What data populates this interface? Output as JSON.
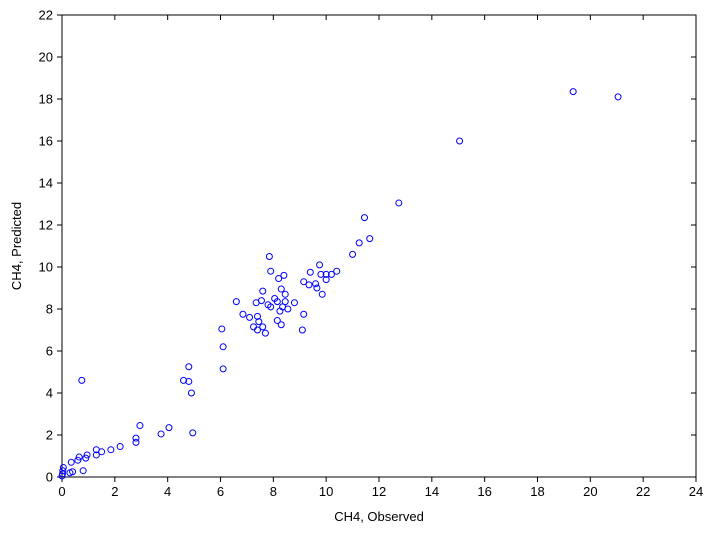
{
  "chart_data": {
    "type": "scatter",
    "xlabel": "CH4, Observed",
    "ylabel": "CH4, Predicted",
    "xlim": [
      0,
      24
    ],
    "ylim": [
      0,
      22
    ],
    "xticks": [
      "0",
      "2",
      "4",
      "6",
      "8",
      "10",
      "12",
      "14",
      "16",
      "18",
      "20",
      "22",
      "24"
    ],
    "yticks": [
      "0",
      "2",
      "4",
      "6",
      "8",
      "10",
      "12",
      "14",
      "16",
      "18",
      "20",
      "22"
    ],
    "grid": false,
    "marker_color": "#0000ff",
    "points": [
      [
        0.0,
        0.05
      ],
      [
        0.02,
        0.15
      ],
      [
        0.03,
        0.3
      ],
      [
        0.05,
        0.45
      ],
      [
        0.3,
        0.2
      ],
      [
        0.4,
        0.25
      ],
      [
        0.35,
        0.7
      ],
      [
        0.6,
        0.8
      ],
      [
        0.65,
        0.95
      ],
      [
        0.8,
        0.3
      ],
      [
        0.9,
        0.9
      ],
      [
        0.95,
        1.05
      ],
      [
        1.3,
        1.05
      ],
      [
        1.3,
        1.3
      ],
      [
        1.5,
        1.2
      ],
      [
        1.85,
        1.3
      ],
      [
        2.2,
        1.45
      ],
      [
        2.8,
        1.65
      ],
      [
        2.8,
        1.85
      ],
      [
        2.95,
        2.45
      ],
      [
        3.75,
        2.05
      ],
      [
        4.05,
        2.35
      ],
      [
        4.95,
        2.1
      ],
      [
        0.75,
        4.6
      ],
      [
        4.6,
        4.6
      ],
      [
        4.8,
        4.55
      ],
      [
        4.8,
        5.25
      ],
      [
        4.9,
        4.0
      ],
      [
        6.1,
        5.15
      ],
      [
        6.1,
        6.2
      ],
      [
        6.05,
        7.05
      ],
      [
        6.6,
        8.35
      ],
      [
        6.85,
        7.75
      ],
      [
        7.1,
        7.6
      ],
      [
        7.25,
        7.15
      ],
      [
        7.35,
        8.3
      ],
      [
        7.4,
        7.0
      ],
      [
        7.4,
        7.65
      ],
      [
        7.45,
        7.4
      ],
      [
        7.55,
        8.4
      ],
      [
        7.6,
        8.85
      ],
      [
        7.6,
        7.15
      ],
      [
        7.7,
        6.85
      ],
      [
        7.8,
        8.2
      ],
      [
        7.85,
        10.5
      ],
      [
        7.9,
        9.8
      ],
      [
        7.9,
        8.1
      ],
      [
        8.05,
        8.5
      ],
      [
        8.15,
        7.45
      ],
      [
        8.15,
        8.35
      ],
      [
        8.2,
        9.45
      ],
      [
        8.25,
        7.9
      ],
      [
        8.3,
        7.25
      ],
      [
        8.3,
        8.95
      ],
      [
        8.35,
        8.1
      ],
      [
        8.4,
        9.6
      ],
      [
        8.45,
        8.7
      ],
      [
        8.45,
        8.35
      ],
      [
        8.55,
        8.0
      ],
      [
        8.8,
        8.3
      ],
      [
        9.1,
        7.0
      ],
      [
        9.15,
        7.75
      ],
      [
        9.15,
        9.3
      ],
      [
        9.35,
        9.15
      ],
      [
        9.4,
        9.75
      ],
      [
        9.6,
        9.2
      ],
      [
        9.65,
        9.0
      ],
      [
        9.75,
        10.1
      ],
      [
        9.8,
        9.65
      ],
      [
        9.85,
        8.7
      ],
      [
        10.0,
        9.4
      ],
      [
        10.0,
        9.65
      ],
      [
        10.2,
        9.65
      ],
      [
        10.4,
        9.8
      ],
      [
        11.0,
        10.6
      ],
      [
        11.25,
        11.15
      ],
      [
        11.45,
        12.35
      ],
      [
        11.65,
        11.35
      ],
      [
        12.75,
        13.05
      ],
      [
        15.05,
        16.0
      ],
      [
        19.35,
        18.35
      ],
      [
        21.05,
        18.1
      ]
    ]
  }
}
